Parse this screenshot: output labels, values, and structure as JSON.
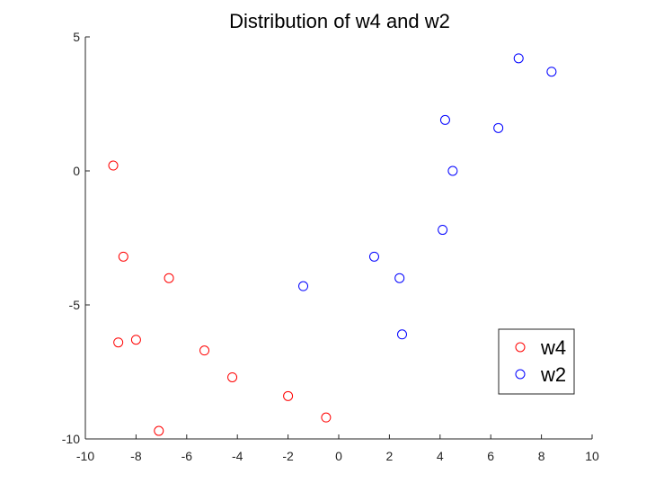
{
  "chart_data": {
    "type": "scatter",
    "title": "Distribution of w4 and w2",
    "xlabel": "",
    "ylabel": "",
    "xlim": [
      -10,
      10
    ],
    "ylim": [
      -10,
      5
    ],
    "xticks": [
      -10,
      -8,
      -6,
      -4,
      -2,
      0,
      2,
      4,
      6,
      8,
      10
    ],
    "yticks": [
      -10,
      -5,
      0,
      5
    ],
    "grid": false,
    "legend_position": "bottom-right",
    "marker": "open-circle",
    "series": [
      {
        "name": "w4",
        "color": "#ff0000",
        "points": [
          [
            -8.9,
            0.2
          ],
          [
            -8.5,
            -3.2
          ],
          [
            -6.7,
            -4.0
          ],
          [
            -8.7,
            -6.4
          ],
          [
            -8.0,
            -6.3
          ],
          [
            -5.3,
            -6.7
          ],
          [
            -4.2,
            -7.7
          ],
          [
            -2.0,
            -8.4
          ],
          [
            -0.5,
            -9.2
          ],
          [
            -7.1,
            -9.7
          ]
        ]
      },
      {
        "name": "w2",
        "color": "#0000ff",
        "points": [
          [
            7.1,
            4.2
          ],
          [
            8.4,
            3.7
          ],
          [
            4.2,
            1.9
          ],
          [
            6.3,
            1.6
          ],
          [
            4.5,
            0.0
          ],
          [
            4.1,
            -2.2
          ],
          [
            1.4,
            -3.2
          ],
          [
            2.4,
            -4.0
          ],
          [
            -1.4,
            -4.3
          ],
          [
            2.5,
            -6.1
          ]
        ]
      }
    ]
  }
}
